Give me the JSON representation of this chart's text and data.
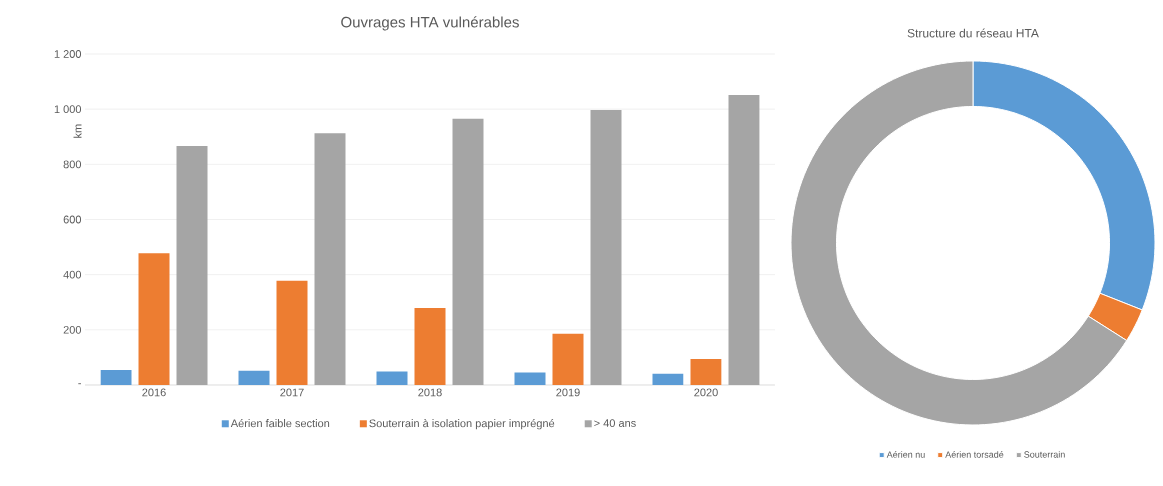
{
  "chart_data": [
    {
      "type": "bar",
      "title": "Ouvrages HTA vulnérables",
      "ylabel": "km",
      "categories": [
        "2016",
        "2017",
        "2018",
        "2019",
        "2020"
      ],
      "series": [
        {
          "name": "Aérien faible section",
          "color": "#5b9bd5",
          "values": [
            54,
            52,
            49,
            45,
            41
          ]
        },
        {
          "name": "Souterrain à isolation papier imprégné",
          "color": "#ed7d31",
          "values": [
            478,
            378,
            279,
            186,
            94
          ]
        },
        {
          "name": "> 40 ans",
          "color": "#a5a5a5",
          "values": [
            866,
            913,
            965,
            997,
            1051
          ]
        }
      ],
      "ylim": [
        0,
        1200
      ],
      "yticks": [
        {
          "value": 0,
          "label": "-"
        },
        200,
        400,
        600,
        800,
        {
          "value": 1000,
          "label": "1 000"
        },
        {
          "value": 1200,
          "label": "1 200"
        }
      ],
      "grid": "y",
      "legend": "bottom"
    },
    {
      "type": "donut",
      "title": "Structure du réseau HTA",
      "categories": [
        "Aérien nu",
        "Aérien torsadé",
        "Souterrain"
      ],
      "values": [
        31,
        3,
        66
      ],
      "colors": [
        "#5b9bd5",
        "#ed7d31",
        "#a5a5a5"
      ],
      "legend": "bottom"
    }
  ]
}
